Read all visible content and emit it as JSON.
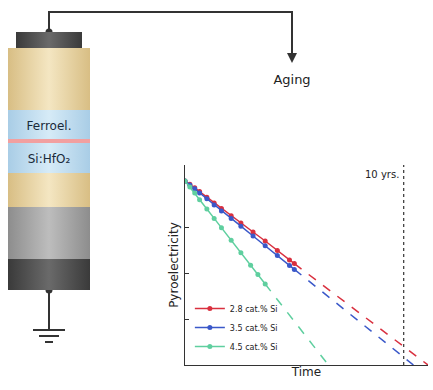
{
  "chart_data": {
    "type": "line",
    "x_label": "Time",
    "y_label": "Pyroelectricity",
    "xlim": [
      0,
      100
    ],
    "ylim": [
      0,
      100
    ],
    "yticks": [
      23,
      46,
      69
    ],
    "tick_labels": false,
    "grid": false,
    "legend": "lower left",
    "marker": "circle",
    "series": [
      {
        "name": "2.8 cat.% Si",
        "color": "#d9303f",
        "x": [
          0,
          2,
          4,
          6,
          9,
          12,
          15,
          19,
          23,
          28,
          33,
          38,
          43,
          45
        ],
        "values": [
          92,
          90.4,
          88.6,
          86.7,
          83.9,
          81.0,
          78.3,
          74.6,
          71.0,
          66.5,
          62.0,
          57.2,
          52.5,
          50.7
        ],
        "extrapolation": {
          "x": [
            45,
            100
          ],
          "values": [
            50.7,
            0
          ],
          "line_style": "dashed"
        }
      },
      {
        "name": "3.5 cat.% Si",
        "color": "#3a58c9",
        "x": [
          0,
          2,
          4,
          6,
          9,
          12,
          15,
          19,
          23,
          28,
          33,
          38,
          43,
          45
        ],
        "values": [
          92,
          90.0,
          88.1,
          86.0,
          83.1,
          80.0,
          77.0,
          73.2,
          69.4,
          64.5,
          59.6,
          54.7,
          49.8,
          47.8
        ],
        "extrapolation": {
          "x": [
            45,
            94
          ],
          "values": [
            47.8,
            0
          ],
          "line_style": "dashed"
        }
      },
      {
        "name": "4.5 cat.% Si",
        "color": "#5fcf9f",
        "x": [
          0,
          2,
          4,
          6,
          9,
          12,
          15,
          19,
          23,
          27,
          30,
          33
        ],
        "values": [
          92,
          89,
          86,
          82.6,
          78,
          73.3,
          68.6,
          62.4,
          56.1,
          49.9,
          45.2,
          40.5
        ],
        "extrapolation": {
          "x": [
            33,
            59
          ],
          "values": [
            40.5,
            0
          ],
          "line_style": "dashed"
        }
      }
    ],
    "annotations": [
      {
        "text": "10 yrs.",
        "x": 90,
        "line_style": "dotted"
      }
    ]
  },
  "diagram": {
    "layers": [
      "Ferroel.",
      "Si:HfO₂"
    ],
    "arrow_label": "Aging"
  }
}
